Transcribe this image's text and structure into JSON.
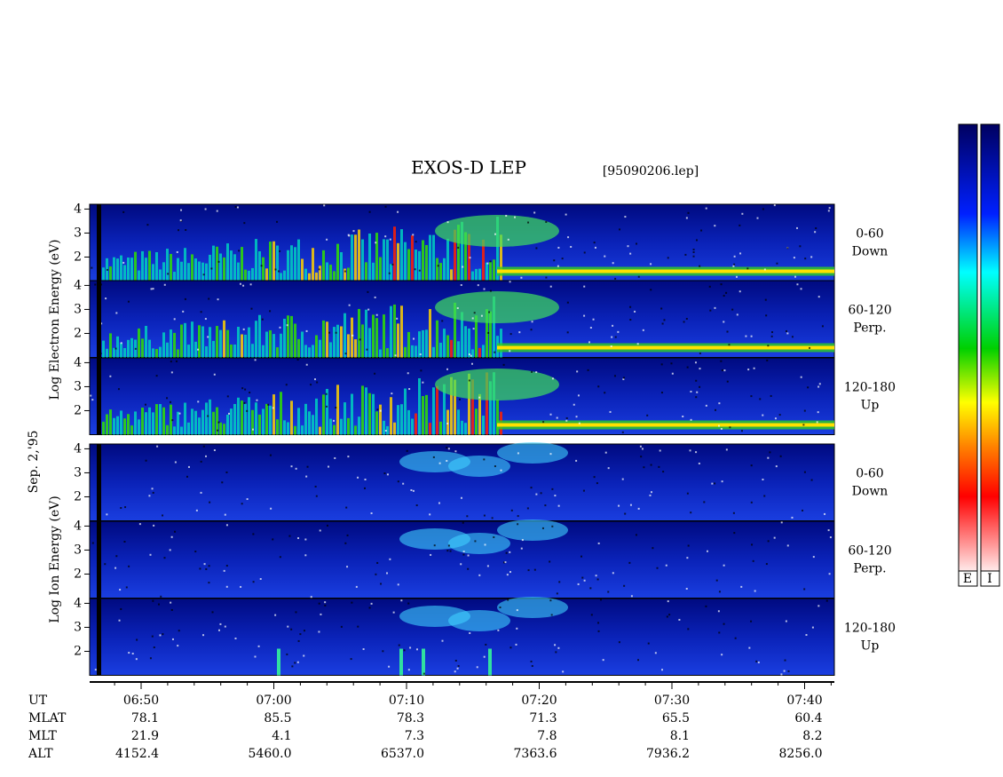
{
  "header": {
    "title": "EXOS-D LEP",
    "file": "[95090206.lep]"
  },
  "electron_axis_label": "Log  Electron  Energy (eV)",
  "date": "Sep. 2,'95",
  "ion_axis_label": "Log  Ion  Energy (eV)",
  "panels": [
    {
      "species": "electron",
      "pitch": "0-60",
      "direction": "Down",
      "yticks": [
        4,
        3,
        2
      ],
      "ylim": [
        1,
        4.2
      ]
    },
    {
      "species": "electron",
      "pitch": "60-120",
      "direction": "Perp.",
      "yticks": [
        4,
        3,
        2
      ],
      "ylim": [
        1,
        4.2
      ]
    },
    {
      "species": "electron",
      "pitch": "120-180",
      "direction": "Up",
      "yticks": [
        4,
        3,
        2
      ],
      "ylim": [
        1,
        4.2
      ]
    },
    {
      "species": "ion",
      "pitch": "0-60",
      "direction": "Down",
      "yticks": [
        4,
        3,
        2
      ],
      "ylim": [
        1,
        4.2
      ]
    },
    {
      "species": "ion",
      "pitch": "60-120",
      "direction": "Perp.",
      "yticks": [
        4,
        3,
        2
      ],
      "ylim": [
        1,
        4.2
      ]
    },
    {
      "species": "ion",
      "pitch": "120-180",
      "direction": "Up",
      "yticks": [
        4,
        3,
        2
      ],
      "ylim": [
        1,
        4.2
      ]
    }
  ],
  "orbit": {
    "rows": [
      {
        "name": "UT",
        "values": [
          "06:50",
          "07:00",
          "07:10",
          "07:20",
          "07:30",
          "07:40"
        ]
      },
      {
        "name": "MLAT",
        "values": [
          "78.1",
          "85.5",
          "78.3",
          "71.3",
          "65.5",
          "60.4"
        ]
      },
      {
        "name": "MLT",
        "values": [
          "21.9",
          "4.1",
          "7.3",
          "7.8",
          "8.1",
          "8.2"
        ]
      },
      {
        "name": "ALT",
        "values": [
          "4152.4",
          "5460.0",
          "6537.0",
          "7363.6",
          "7936.2",
          "8256.0"
        ]
      }
    ]
  },
  "colorbars": [
    "E",
    "I"
  ]
}
